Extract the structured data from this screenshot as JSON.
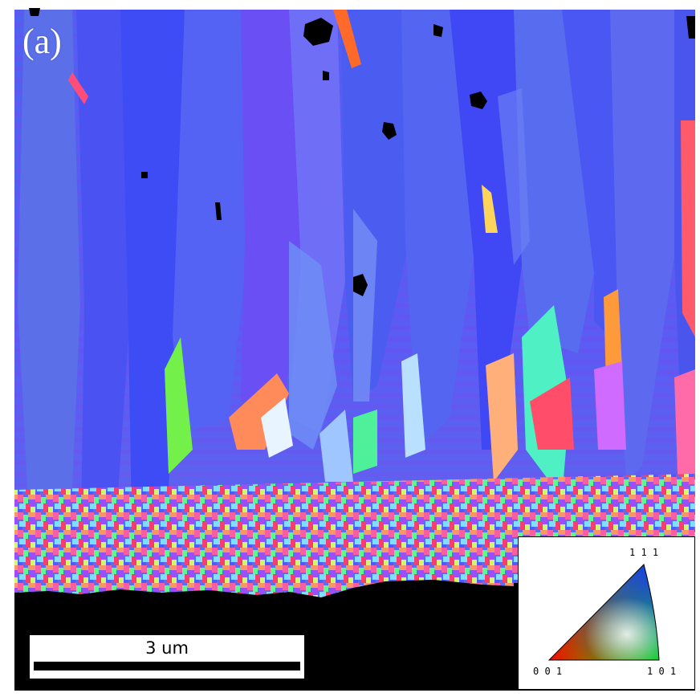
{
  "figure": {
    "panel_label": "(a)",
    "scale_bar_label": "3 um",
    "legend": {
      "corner_111": "1 1 1",
      "corner_001": "0 0 1",
      "corner_101": "1 0 1"
    }
  },
  "colors": {
    "dominant_blue": "#4f5bf0",
    "violet": "#7b46f2",
    "background_black": "#000000"
  }
}
